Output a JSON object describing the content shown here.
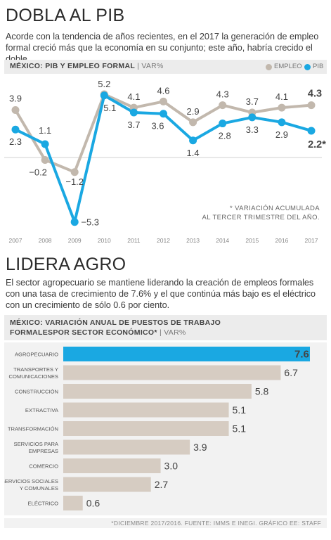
{
  "headline1": "DOBLA AL PIB",
  "intro1": "Acorde con la tendencia de años recientes, en el 2017 la generación de empleo formal creció más que la economía en su conjunto; este año, habría crecido el doble.",
  "chart1_header": {
    "title": "MÉXICO: PIB Y EMPLEO FORMAL",
    "unit": "VAR%",
    "legend_empleo": "EMPLEO",
    "legend_pib": "PIB"
  },
  "chart1_note_line1": "* VARIACIÓN ACUMULADA",
  "chart1_note_line2": "AL TERCER TRIMESTRE DEL AÑO.",
  "headline2": "LIDERA AGRO",
  "intro2": "El sector agropecuario se mantiene liderando la creación de empleos formales con una tasa de  crecimiento de 7.6% y el que continúa más bajo es el eléctrico con un crecimiento de sólo 0.6 por ciento.",
  "chart2_header": {
    "title_line1": "MÉXICO: VARIACIÓN ANUAL DE PUESTOS DE TRABAJO",
    "title_line2": "FORMALESPOR SECTOR ECONÓMICO*",
    "unit": "VAR%"
  },
  "footnote": "*DICIEMBRE 2017/2016.  FUENTE: IMMS E INEGI. GRÁFICO EE: STAFF",
  "colors": {
    "empleo": "#c2b8ad",
    "pib": "#1aa8e2",
    "bar_gray": "#d6ccc2",
    "bar_highlight": "#1aa8e2",
    "header_bg": "#ececec"
  },
  "chart_data": [
    {
      "type": "line",
      "title": "MÉXICO: PIB Y EMPLEO FORMAL",
      "x": [
        "2007",
        "2008",
        "2009",
        "2010",
        "2011",
        "2012",
        "2013",
        "2014",
        "2015",
        "2016",
        "2017"
      ],
      "series": [
        {
          "name": "EMPLEO",
          "values": [
            3.9,
            -0.2,
            -1.2,
            5.2,
            4.1,
            4.6,
            2.9,
            4.3,
            3.7,
            4.1,
            4.3
          ],
          "labels": [
            "3.9",
            "−0.2",
            "−1.2",
            "",
            "4.1",
            "4.6",
            "2.9",
            "4.3",
            "3.7",
            "4.1",
            "4.3"
          ]
        },
        {
          "name": "PIB",
          "values": [
            2.3,
            1.1,
            -5.3,
            5.1,
            3.7,
            3.6,
            1.4,
            2.8,
            3.3,
            2.9,
            2.2
          ],
          "labels": [
            "2.3",
            "1.1",
            "−5.3",
            "5.1",
            "3.7",
            "3.6",
            "1.4",
            "2.8",
            "3.3",
            "2.9",
            "2.2*"
          ]
        }
      ],
      "label_5_2": "5.2",
      "ylabel": "VAR%",
      "legend": "top-right",
      "zero_line": true
    },
    {
      "type": "bar",
      "orientation": "horizontal",
      "title": "MÉXICO: VARIACIÓN ANUAL DE PUESTOS DE TRABAJO FORMALESPOR SECTOR ECONÓMICO*",
      "categories": [
        [
          "AGROPECUARIO"
        ],
        [
          "TRANSPORTES Y",
          "COMUNICACIONES"
        ],
        [
          "CONSTRUCCIÓN"
        ],
        [
          "EXTRACTIVA"
        ],
        [
          "TRANSFORMACIÓN"
        ],
        [
          "SERVICIOS PARA",
          "EMPRESAS"
        ],
        [
          "COMERCIO"
        ],
        [
          "SERVICIOS SOCIALES",
          "Y COMUNALES"
        ],
        [
          "ELÉCTRICO"
        ]
      ],
      "values": [
        7.6,
        6.7,
        5.8,
        5.1,
        5.1,
        3.9,
        3.0,
        2.7,
        0.6
      ],
      "value_labels": [
        "7.6",
        "6.7",
        "5.8",
        "5.1",
        "5.1",
        "3.9",
        "3.0",
        "2.7",
        "0.6"
      ],
      "highlight_index": 0
    }
  ]
}
